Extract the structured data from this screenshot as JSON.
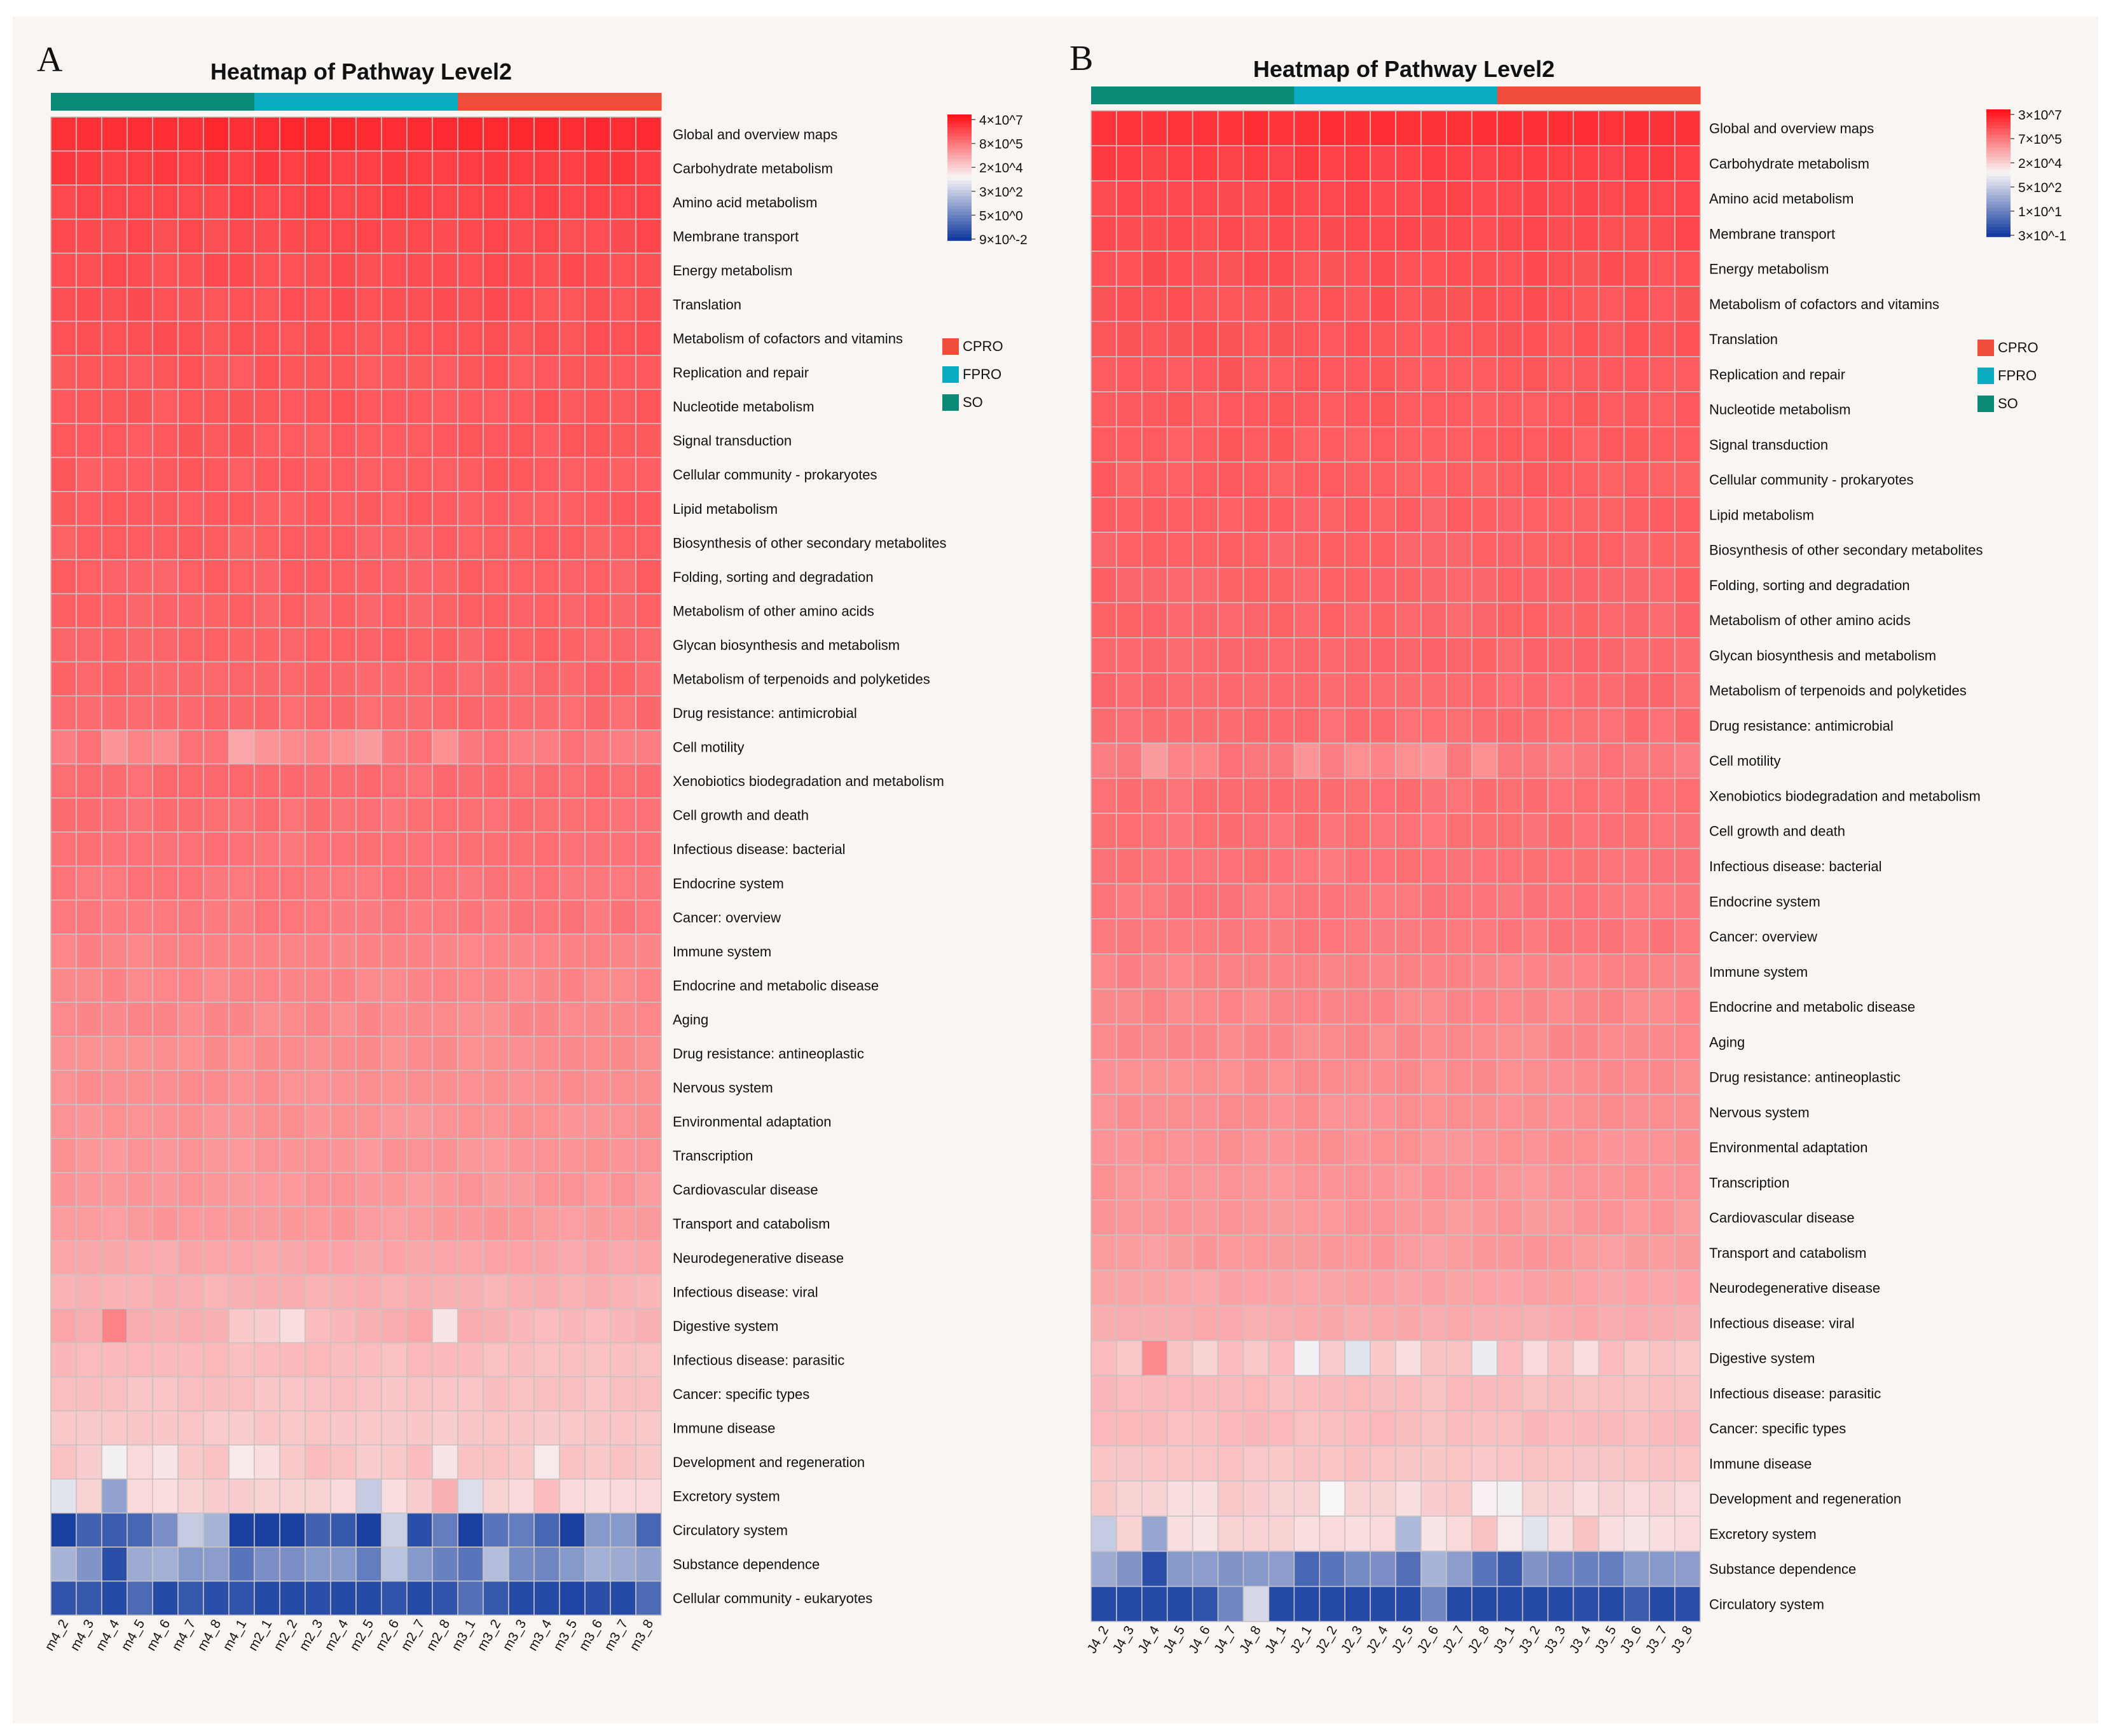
{
  "group_colors": {
    "SO": "#0b8a77",
    "FPRO": "#0aacc1",
    "CPRO": "#f24c3a"
  },
  "panels": [
    {
      "letter": "A",
      "title": "Heatmap of Pathway Level2",
      "legend_groups": [
        "CPRO",
        "FPRO",
        "SO"
      ],
      "colorbar_ticks": [
        "4×10^7",
        "8×10^5",
        "2×10^4",
        "3×10^2",
        "5×10^0",
        "9×10^-2"
      ]
    },
    {
      "letter": "B",
      "title": "Heatmap of Pathway Level2",
      "legend_groups": [
        "CPRO",
        "FPRO",
        "SO"
      ],
      "colorbar_ticks": [
        "3×10^7",
        "7×10^5",
        "2×10^4",
        "5×10^2",
        "1×10^1",
        "3×10^-1"
      ]
    }
  ],
  "chart_data": [
    {
      "type": "heatmap",
      "title": "Heatmap of Pathway Level2",
      "scale": "log10 abundance",
      "value_range": [
        0,
        10
      ],
      "columns": [
        "m4_2",
        "m4_3",
        "m4_4",
        "m4_5",
        "m4_6",
        "m4_7",
        "m4_8",
        "m4_1",
        "m2_1",
        "m2_2",
        "m2_3",
        "m2_4",
        "m2_5",
        "m2_6",
        "m2_7",
        "m2_8",
        "m3_1",
        "m3_2",
        "m3_3",
        "m3_4",
        "m3_5",
        "m3_6",
        "m3_7",
        "m3_8"
      ],
      "column_groups": [
        "SO",
        "SO",
        "SO",
        "SO",
        "SO",
        "SO",
        "SO",
        "SO",
        "FPRO",
        "FPRO",
        "FPRO",
        "FPRO",
        "FPRO",
        "FPRO",
        "FPRO",
        "FPRO",
        "CPRO",
        "CPRO",
        "CPRO",
        "CPRO",
        "CPRO",
        "CPRO",
        "CPRO",
        "CPRO"
      ],
      "rows": [
        "Global and overview maps",
        "Carbohydrate metabolism",
        "Amino acid metabolism",
        "Membrane transport",
        "Energy metabolism",
        "Translation",
        "Metabolism of cofactors and vitamins",
        "Replication and repair",
        "Nucleotide metabolism",
        "Signal transduction",
        "Cellular community - prokaryotes",
        "Lipid metabolism",
        "Biosynthesis of other secondary metabolites",
        "Folding, sorting and degradation",
        "Metabolism of other amino acids",
        "Glycan biosynthesis and metabolism",
        "Metabolism of terpenoids and polyketides",
        "Drug resistance: antimicrobial",
        "Cell motility",
        "Xenobiotics biodegradation and metabolism",
        "Cell growth and death",
        "Infectious disease: bacterial",
        "Endocrine system",
        "Cancer: overview",
        "Immune system",
        "Endocrine and metabolic disease",
        "Aging",
        "Drug resistance: antineoplastic",
        "Nervous system",
        "Environmental adaptation",
        "Transcription",
        "Cardiovascular disease",
        "Transport and catabolism",
        "Neurodegenerative disease",
        "Infectious disease: viral",
        "Digestive system",
        "Infectious disease: parasitic",
        "Cancer: specific types",
        "Immune disease",
        "Development and regeneration",
        "Excretory system",
        "Circulatory system",
        "Substance dependence",
        "Cellular community - eukaryotes"
      ],
      "row_base": [
        7.55,
        7.25,
        7.1,
        7.0,
        6.95,
        6.9,
        6.85,
        6.8,
        6.78,
        6.75,
        6.72,
        6.68,
        6.65,
        6.62,
        6.58,
        6.55,
        6.5,
        6.45,
        6.2,
        6.4,
        6.35,
        6.3,
        6.25,
        6.2,
        6.0,
        5.95,
        5.9,
        5.85,
        5.8,
        5.75,
        5.7,
        5.65,
        5.6,
        5.4,
        5.2,
        5.1,
        5.0,
        4.9,
        4.8,
        4.5,
        4.2,
        0.6,
        1.8,
        0.35
      ],
      "special_values": {
        "Cell motility": [
          6.1,
          6.3,
          5.7,
          6.0,
          5.9,
          6.3,
          6.3,
          5.4,
          5.7,
          5.9,
          6.0,
          5.8,
          5.6,
          6.2,
          6.3,
          5.8,
          6.2,
          6.3,
          6.1,
          6.1,
          6.3,
          6.2,
          6.1,
          6.1
        ],
        "Digestive system": [
          5.4,
          5.3,
          6.0,
          5.3,
          5.2,
          5.3,
          5.2,
          4.8,
          4.7,
          4.4,
          5.0,
          5.1,
          5.2,
          5.3,
          5.4,
          4.3,
          5.3,
          5.2,
          5.1,
          5.0,
          5.1,
          5.0,
          5.1,
          5.2
        ],
        "Development and regeneration": [
          4.9,
          4.7,
          3.9,
          4.5,
          4.3,
          4.8,
          4.9,
          4.2,
          4.4,
          4.8,
          5.0,
          4.9,
          4.7,
          4.8,
          5.0,
          4.3,
          4.9,
          4.9,
          4.8,
          4.2,
          4.9,
          4.8,
          4.9,
          4.8
        ],
        "Excretory system": [
          3.6,
          4.6,
          2.2,
          4.5,
          4.4,
          4.6,
          4.7,
          4.7,
          4.6,
          4.6,
          4.6,
          4.5,
          3.1,
          4.4,
          4.7,
          5.2,
          3.5,
          4.6,
          4.5,
          5.0,
          4.5,
          4.4,
          4.5,
          4.5
        ],
        "Circulatory system": [
          0.1,
          0.8,
          0.7,
          0.9,
          1.8,
          3.1,
          2.6,
          0.1,
          0.1,
          0.1,
          0.8,
          0.6,
          0.1,
          3.2,
          0.4,
          1.4,
          0.1,
          1.2,
          1.4,
          0.9,
          0.1,
          2.0,
          2.0,
          0.9
        ],
        "Substance dependence": [
          2.6,
          1.9,
          0.4,
          2.4,
          2.5,
          2.0,
          2.1,
          1.2,
          1.8,
          1.8,
          2.0,
          2.0,
          1.4,
          2.9,
          2.0,
          1.5,
          1.2,
          2.8,
          1.7,
          1.6,
          2.0,
          2.5,
          2.4,
          2.2
        ],
        "Cellular community - eukaryotes": [
          0.5,
          0.6,
          0.3,
          1.0,
          0.3,
          0.6,
          0.4,
          0.5,
          0.3,
          0.3,
          0.4,
          0.3,
          0.3,
          0.5,
          0.3,
          0.5,
          1.1,
          0.6,
          0.3,
          0.3,
          0.2,
          0.4,
          0.3,
          1.0
        ]
      }
    },
    {
      "type": "heatmap",
      "title": "Heatmap of Pathway Level2",
      "scale": "log10 abundance",
      "value_range": [
        0,
        10
      ],
      "columns": [
        "J4_2",
        "J4_3",
        "J4_4",
        "J4_5",
        "J4_6",
        "J4_7",
        "J4_8",
        "J4_1",
        "J2_1",
        "J2_2",
        "J2_3",
        "J2_4",
        "J2_5",
        "J2_6",
        "J2_7",
        "J2_8",
        "J3_1",
        "J3_2",
        "J3_3",
        "J3_4",
        "J3_5",
        "J3_6",
        "J3_7",
        "J3_8"
      ],
      "column_groups": [
        "SO",
        "SO",
        "SO",
        "SO",
        "SO",
        "SO",
        "SO",
        "SO",
        "FPRO",
        "FPRO",
        "FPRO",
        "FPRO",
        "FPRO",
        "FPRO",
        "FPRO",
        "FPRO",
        "CPRO",
        "CPRO",
        "CPRO",
        "CPRO",
        "CPRO",
        "CPRO",
        "CPRO",
        "CPRO"
      ],
      "rows": [
        "Global and overview maps",
        "Carbohydrate metabolism",
        "Amino acid metabolism",
        "Membrane transport",
        "Energy metabolism",
        "Metabolism of cofactors and vitamins",
        "Translation",
        "Replication and repair",
        "Nucleotide metabolism",
        "Signal transduction",
        "Cellular community - prokaryotes",
        "Lipid metabolism",
        "Biosynthesis of other secondary metabolites",
        "Folding, sorting and degradation",
        "Metabolism of other amino acids",
        "Glycan biosynthesis and metabolism",
        "Metabolism of terpenoids and polyketides",
        "Drug resistance: antimicrobial",
        "Cell motility",
        "Xenobiotics biodegradation and metabolism",
        "Cell growth and death",
        "Infectious disease: bacterial",
        "Endocrine system",
        "Cancer: overview",
        "Immune system",
        "Endocrine and metabolic disease",
        "Aging",
        "Drug resistance: antineoplastic",
        "Nervous system",
        "Environmental adaptation",
        "Transcription",
        "Cardiovascular disease",
        "Transport and catabolism",
        "Neurodegenerative disease",
        "Infectious disease: viral",
        "Digestive system",
        "Infectious disease: parasitic",
        "Cancer: specific types",
        "Immune disease",
        "Development and regeneration",
        "Excretory system",
        "Substance dependence",
        "Circulatory system"
      ],
      "row_base": [
        7.45,
        7.2,
        7.05,
        6.98,
        6.9,
        6.85,
        6.8,
        6.76,
        6.72,
        6.7,
        6.66,
        6.62,
        6.58,
        6.55,
        6.52,
        6.48,
        6.44,
        6.4,
        6.2,
        6.36,
        6.32,
        6.28,
        6.24,
        6.2,
        6.0,
        5.95,
        5.9,
        5.85,
        5.8,
        5.75,
        5.7,
        5.65,
        5.6,
        5.45,
        5.3,
        5.1,
        5.0,
        5.0,
        4.85,
        4.6,
        4.3,
        1.8,
        0.5
      ],
      "special_values": {
        "Cell motility": [
          6.1,
          6.2,
          5.6,
          6.0,
          6.0,
          6.3,
          6.2,
          6.2,
          5.7,
          6.1,
          5.8,
          6.0,
          5.8,
          5.7,
          6.2,
          5.8,
          6.2,
          6.2,
          6.1,
          6.2,
          6.3,
          6.2,
          6.2,
          6.1
        ],
        "Digestive system": [
          5.0,
          4.8,
          5.9,
          4.9,
          4.6,
          5.0,
          4.8,
          5.0,
          3.9,
          4.7,
          3.6,
          4.8,
          4.4,
          4.9,
          4.9,
          3.8,
          5.0,
          4.5,
          4.9,
          4.4,
          5.0,
          4.8,
          4.9,
          4.8
        ],
        "Development and regeneration": [
          4.8,
          4.6,
          4.6,
          4.4,
          4.4,
          4.8,
          4.7,
          4.6,
          4.6,
          4.0,
          4.6,
          4.6,
          4.4,
          4.7,
          4.8,
          4.1,
          3.9,
          4.6,
          4.6,
          4.4,
          4.6,
          4.5,
          4.6,
          4.5
        ],
        "Excretory system": [
          3.1,
          4.6,
          2.3,
          4.4,
          4.3,
          4.6,
          4.6,
          4.6,
          4.4,
          4.5,
          4.4,
          4.5,
          2.7,
          4.3,
          4.5,
          4.9,
          4.2,
          3.6,
          4.4,
          4.9,
          4.4,
          4.3,
          4.4,
          4.5
        ],
        "Substance dependence": [
          2.4,
          1.9,
          0.4,
          2.0,
          2.1,
          1.9,
          2.0,
          2.1,
          0.9,
          1.2,
          1.7,
          1.8,
          1.1,
          2.6,
          2.1,
          1.2,
          0.6,
          1.9,
          1.6,
          1.5,
          1.4,
          2.0,
          2.0,
          2.1
        ],
        "Circulatory system": [
          0.3,
          0.3,
          0.3,
          0.3,
          0.5,
          1.6,
          3.4,
          0.3,
          0.3,
          0.3,
          0.3,
          0.3,
          0.3,
          1.6,
          0.3,
          0.3,
          0.3,
          0.3,
          0.3,
          0.4,
          0.3,
          0.7,
          0.3,
          0.4
        ]
      }
    }
  ]
}
